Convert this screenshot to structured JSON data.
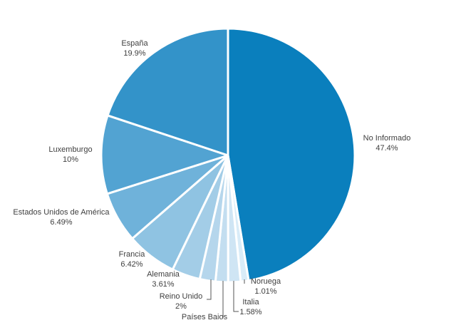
{
  "chart_data": {
    "type": "pie",
    "title": "",
    "slices": [
      {
        "label": "No Informado",
        "value": 47.4,
        "value_label": "47.4%",
        "color": "#0a7fbd"
      },
      {
        "label": "Noruega",
        "value": 1.01,
        "value_label": "1.01%",
        "color": "#d9ecf8"
      },
      {
        "label": "Italia",
        "value": 1.58,
        "value_label": "1.58%",
        "color": "#cfe5f4"
      },
      {
        "label": "Países Baios",
        "value": 1.6,
        "value_label": "",
        "color": "#c3def0"
      },
      {
        "label": "Reino Unido",
        "value": 2.0,
        "value_label": "2%",
        "color": "#b5d6ec"
      },
      {
        "label": "Alemania",
        "value": 3.61,
        "value_label": "3.61%",
        "color": "#a3cde7"
      },
      {
        "label": "Francia",
        "value": 6.42,
        "value_label": "6.42%",
        "color": "#8fc3e2"
      },
      {
        "label": "Estados Unidos de América",
        "value": 6.49,
        "value_label": "6.49%",
        "color": "#6fb2da"
      },
      {
        "label": "Luxemburgo",
        "value": 10.0,
        "value_label": "10%",
        "color": "#52a3d2"
      },
      {
        "label": "España",
        "value": 19.9,
        "value_label": "19.9%",
        "color": "#3393c9"
      }
    ]
  }
}
